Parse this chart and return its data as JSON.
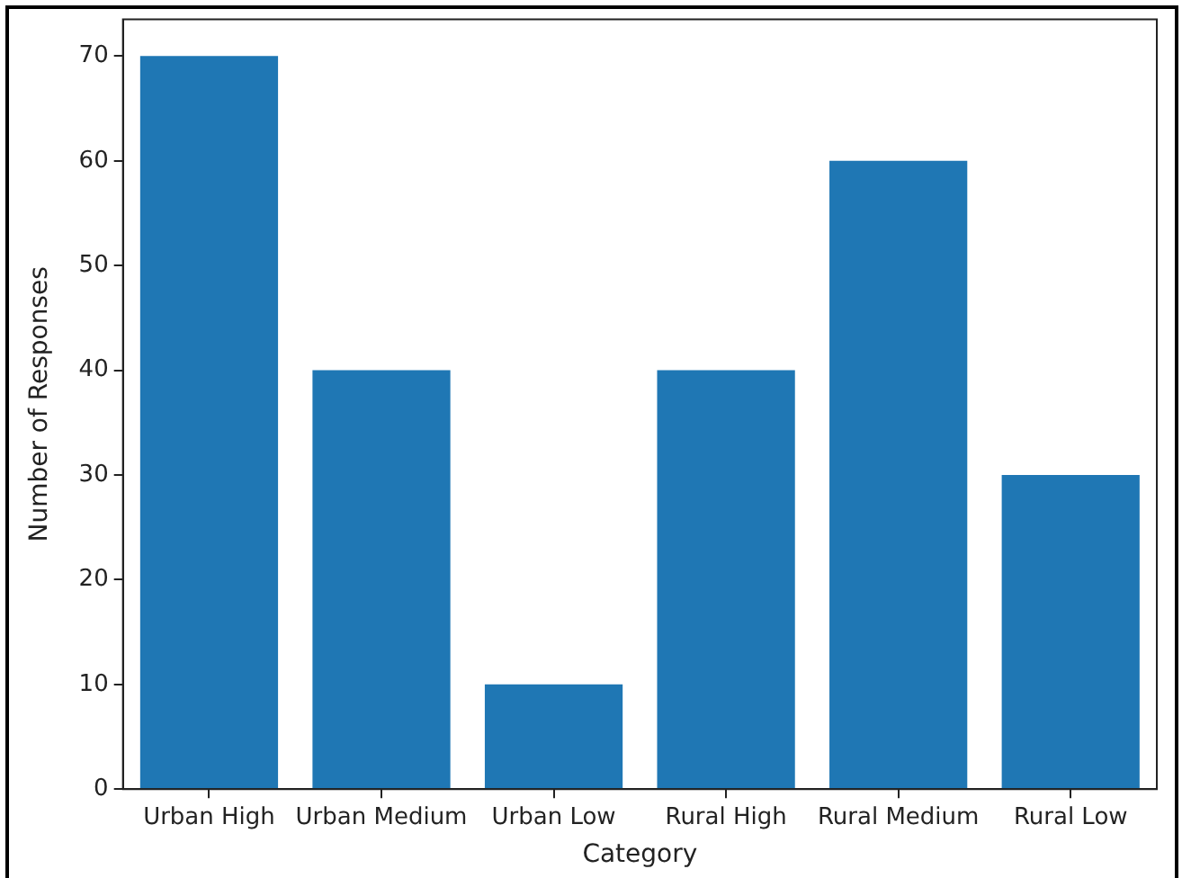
{
  "chart_data": {
    "type": "bar",
    "xlabel": "Category",
    "ylabel": "Number of Responses",
    "categories": [
      "Urban High",
      "Urban Medium",
      "Urban Low",
      "Rural High",
      "Rural Medium",
      "Rural Low"
    ],
    "values": [
      70,
      40,
      10,
      40,
      60,
      30
    ],
    "color": "#1f77b4",
    "ylim": [
      0,
      73.5
    ],
    "yticks": [
      0,
      10,
      20,
      30,
      40,
      50,
      60,
      70
    ]
  }
}
